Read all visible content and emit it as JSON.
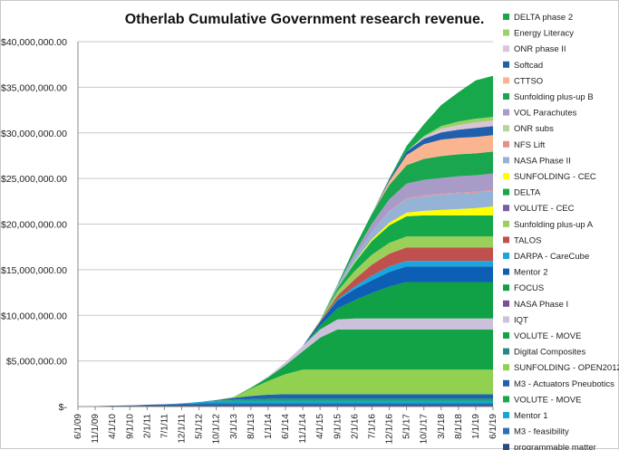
{
  "chart_data": {
    "type": "area",
    "title": "Otherlab Cumulative Government research revenue.",
    "xlabel": "",
    "ylabel": "",
    "stacked": true,
    "grid": "horizontal",
    "legend_position": "right",
    "ylim": [
      0,
      40000000
    ],
    "y_ticks": [
      0,
      5000000,
      10000000,
      15000000,
      20000000,
      25000000,
      30000000,
      35000000,
      40000000
    ],
    "y_tick_labels": [
      "$-",
      "$5,000,000.00",
      "$10,000,000.00",
      "$15,000,000.00",
      "$20,000,000.00",
      "$25,000,000.00",
      "$30,000,000.00",
      "$35,000,000.00",
      "$40,000,000.00"
    ],
    "x_tick_labels": [
      "6/1/09",
      "11/1/09",
      "4/1/10",
      "9/1/10",
      "2/1/11",
      "7/1/11",
      "12/1/11",
      "5/1/12",
      "10/1/12",
      "3/1/13",
      "8/1/13",
      "1/1/14",
      "6/1/14",
      "11/1/14",
      "4/1/15",
      "9/1/15",
      "2/1/16",
      "7/1/16",
      "12/1/16",
      "5/1/17",
      "10/1/17",
      "3/1/18",
      "8/1/18",
      "1/1/19",
      "6/1/19"
    ],
    "x": [
      "6/1/09",
      "11/1/09",
      "4/1/10",
      "9/1/10",
      "2/1/11",
      "7/1/11",
      "12/1/11",
      "5/1/12",
      "10/1/12",
      "3/1/13",
      "8/1/13",
      "1/1/14",
      "6/1/14",
      "11/1/14",
      "4/1/15",
      "9/1/15",
      "2/1/16",
      "7/1/16",
      "12/1/16",
      "5/1/17",
      "10/1/17",
      "3/1/18",
      "8/1/18",
      "1/1/19",
      "6/1/19"
    ],
    "series": [
      {
        "name": "programmable matter",
        "color": "#2e4a7a",
        "values": [
          0,
          50000,
          100000,
          120000,
          150000,
          150000,
          150000,
          150000,
          150000,
          150000,
          150000,
          150000,
          150000,
          150000,
          150000,
          150000,
          150000,
          150000,
          150000,
          150000,
          150000,
          150000,
          150000,
          150000,
          150000
        ]
      },
      {
        "name": "M3 - feasibility",
        "color": "#2f6fb5",
        "values": [
          0,
          0,
          0,
          0,
          50000,
          100000,
          150000,
          200000,
          200000,
          200000,
          200000,
          200000,
          200000,
          200000,
          200000,
          200000,
          200000,
          200000,
          200000,
          200000,
          200000,
          200000,
          200000,
          200000,
          200000
        ]
      },
      {
        "name": "Mentor 1",
        "color": "#17a6d9",
        "values": [
          0,
          0,
          0,
          0,
          0,
          0,
          50000,
          150000,
          250000,
          300000,
          300000,
          300000,
          300000,
          300000,
          300000,
          300000,
          300000,
          300000,
          300000,
          300000,
          300000,
          300000,
          300000,
          300000,
          300000
        ]
      },
      {
        "name": "VOLUTE - MOVE",
        "color": "#1aa84a",
        "values": [
          0,
          0,
          0,
          0,
          0,
          0,
          0,
          0,
          50000,
          100000,
          150000,
          200000,
          200000,
          200000,
          200000,
          200000,
          200000,
          200000,
          200000,
          200000,
          200000,
          200000,
          200000,
          200000,
          200000
        ]
      },
      {
        "name": "M3 - Actuators Pneubotics",
        "color": "#1e62b0",
        "values": [
          0,
          0,
          0,
          0,
          0,
          0,
          0,
          0,
          50000,
          200000,
          350000,
          450000,
          500000,
          500000,
          500000,
          500000,
          500000,
          500000,
          500000,
          500000,
          500000,
          500000,
          500000,
          500000,
          500000
        ]
      },
      {
        "name": "SUNFOLDING - OPEN2012",
        "color": "#92d050",
        "values": [
          0,
          0,
          0,
          0,
          0,
          0,
          0,
          0,
          0,
          100000,
          800000,
          1500000,
          2200000,
          2700000,
          2700000,
          2700000,
          2700000,
          2700000,
          2700000,
          2700000,
          2700000,
          2700000,
          2700000,
          2700000,
          2700000
        ]
      },
      {
        "name": "Digital Composites",
        "color": "#24897f",
        "values": [
          0,
          0,
          0,
          0,
          0,
          0,
          0,
          0,
          0,
          0,
          0,
          0,
          0,
          0,
          0,
          0,
          0,
          0,
          0,
          0,
          0,
          0,
          0,
          0,
          0
        ]
      },
      {
        "name": "VOLUTE - MOVE",
        "color": "#12a347",
        "values": [
          0,
          0,
          0,
          0,
          0,
          0,
          0,
          0,
          0,
          0,
          100000,
          400000,
          1000000,
          2000000,
          3500000,
          4400000,
          4400000,
          4400000,
          4400000,
          4400000,
          4400000,
          4400000,
          4400000,
          4400000,
          4400000
        ]
      },
      {
        "name": "IQT",
        "color": "#ccc0da",
        "values": [
          0,
          0,
          0,
          0,
          0,
          0,
          0,
          0,
          0,
          0,
          0,
          100000,
          300000,
          600000,
          900000,
          1100000,
          1200000,
          1200000,
          1200000,
          1200000,
          1200000,
          1200000,
          1200000,
          1200000,
          1200000
        ]
      },
      {
        "name": "NASA Phase I",
        "color": "#7b4e9e",
        "values": [
          0,
          0,
          0,
          0,
          0,
          0,
          0,
          0,
          0,
          0,
          0,
          0,
          0,
          0,
          0,
          0,
          0,
          0,
          0,
          0,
          0,
          0,
          0,
          0,
          0
        ]
      },
      {
        "name": "FOCUS",
        "color": "#10a046",
        "values": [
          0,
          0,
          0,
          0,
          0,
          0,
          0,
          0,
          0,
          0,
          0,
          0,
          0,
          0,
          400000,
          1200000,
          2000000,
          2800000,
          3500000,
          4000000,
          4000000,
          4000000,
          4000000,
          4000000,
          4000000
        ]
      },
      {
        "name": "Mentor 2",
        "color": "#0d5fb5",
        "values": [
          0,
          0,
          0,
          0,
          0,
          0,
          0,
          0,
          0,
          0,
          0,
          0,
          0,
          0,
          400000,
          900000,
          1200000,
          1400000,
          1600000,
          1700000,
          1700000,
          1700000,
          1700000,
          1700000,
          1700000
        ]
      },
      {
        "name": "DARPA - CareCube",
        "color": "#17a6df",
        "values": [
          0,
          0,
          0,
          0,
          0,
          0,
          0,
          0,
          0,
          0,
          0,
          0,
          0,
          0,
          0,
          100000,
          300000,
          500000,
          600000,
          600000,
          600000,
          600000,
          600000,
          600000,
          600000
        ]
      },
      {
        "name": "TALOS",
        "color": "#c0504d",
        "values": [
          0,
          0,
          0,
          0,
          0,
          0,
          0,
          0,
          0,
          0,
          0,
          0,
          0,
          0,
          100000,
          400000,
          800000,
          1200000,
          1400000,
          1500000,
          1500000,
          1500000,
          1500000,
          1500000,
          1500000
        ]
      },
      {
        "name": "Sunfolding plus-up A",
        "color": "#9bcf5a",
        "values": [
          0,
          0,
          0,
          0,
          0,
          0,
          0,
          0,
          0,
          0,
          0,
          0,
          0,
          0,
          100000,
          500000,
          900000,
          1100000,
          1200000,
          1200000,
          1200000,
          1200000,
          1200000,
          1200000,
          1200000
        ]
      },
      {
        "name": "VOLUTE - CEC",
        "color": "#7a5ca6",
        "values": [
          0,
          0,
          0,
          0,
          0,
          0,
          0,
          0,
          0,
          0,
          0,
          0,
          0,
          0,
          0,
          0,
          0,
          0,
          0,
          0,
          0,
          0,
          0,
          0,
          0
        ]
      },
      {
        "name": "DELTA",
        "color": "#14a84a",
        "values": [
          0,
          0,
          0,
          0,
          0,
          0,
          0,
          0,
          0,
          0,
          0,
          0,
          0,
          0,
          0,
          300000,
          900000,
          1500000,
          1900000,
          2200000,
          2300000,
          2300000,
          2300000,
          2300000,
          2300000
        ]
      },
      {
        "name": "SUNFOLDING - CEC",
        "color": "#ffff00",
        "values": [
          0,
          0,
          0,
          0,
          0,
          0,
          0,
          0,
          0,
          0,
          0,
          0,
          0,
          0,
          0,
          0,
          100000,
          200000,
          300000,
          400000,
          500000,
          600000,
          700000,
          800000,
          1000000
        ]
      },
      {
        "name": "NASA Phase II",
        "color": "#95b3d7",
        "values": [
          0,
          0,
          0,
          0,
          0,
          0,
          0,
          0,
          0,
          0,
          0,
          0,
          0,
          0,
          0,
          200000,
          500000,
          800000,
          1200000,
          1500000,
          1600000,
          1700000,
          1700000,
          1700000,
          1700000
        ]
      },
      {
        "name": "NFS Lift",
        "color": "#e6908a",
        "values": [
          0,
          0,
          0,
          0,
          0,
          0,
          0,
          0,
          0,
          0,
          0,
          0,
          0,
          0,
          0,
          0,
          0,
          0,
          50000,
          100000,
          100000,
          100000,
          100000,
          100000,
          100000
        ]
      },
      {
        "name": "ONR subs",
        "color": "#b5d69b",
        "values": [
          0,
          0,
          0,
          0,
          0,
          0,
          0,
          0,
          0,
          0,
          0,
          0,
          0,
          0,
          0,
          0,
          0,
          0,
          0,
          0,
          0,
          0,
          0,
          0,
          0
        ]
      },
      {
        "name": "VOL Parachutes",
        "color": "#a99bc7",
        "values": [
          0,
          0,
          0,
          0,
          0,
          0,
          0,
          0,
          0,
          0,
          0,
          0,
          0,
          0,
          0,
          100000,
          500000,
          900000,
          1300000,
          1600000,
          1700000,
          1700000,
          1800000,
          1800000,
          1800000
        ]
      },
      {
        "name": "Sunfolding plus-up B",
        "color": "#1aa64e",
        "values": [
          0,
          0,
          0,
          0,
          0,
          0,
          0,
          0,
          0,
          0,
          0,
          0,
          0,
          0,
          0,
          100000,
          600000,
          1100000,
          1600000,
          2000000,
          2300000,
          2400000,
          2400000,
          2400000,
          2400000
        ]
      },
      {
        "name": "CTTSO",
        "color": "#fab590",
        "values": [
          0,
          0,
          0,
          0,
          0,
          0,
          0,
          0,
          0,
          0,
          0,
          0,
          0,
          0,
          0,
          0,
          0,
          0,
          400000,
          1100000,
          1600000,
          1800000,
          1800000,
          1800000,
          1800000
        ]
      },
      {
        "name": "Softcad",
        "color": "#1f5fab",
        "values": [
          0,
          0,
          0,
          0,
          0,
          0,
          0,
          0,
          0,
          0,
          0,
          0,
          0,
          0,
          0,
          0,
          0,
          0,
          200000,
          400000,
          600000,
          800000,
          900000,
          1000000,
          1000000
        ]
      },
      {
        "name": "ONR phase II",
        "color": "#dbc4d7",
        "values": [
          0,
          0,
          0,
          0,
          0,
          0,
          0,
          0,
          0,
          0,
          0,
          0,
          0,
          0,
          0,
          0,
          0,
          0,
          0,
          0,
          200000,
          400000,
          500000,
          600000,
          600000
        ]
      },
      {
        "name": "Energy Literacy",
        "color": "#9bd166",
        "values": [
          0,
          0,
          0,
          0,
          0,
          0,
          0,
          0,
          0,
          0,
          0,
          0,
          0,
          0,
          0,
          0,
          0,
          0,
          0,
          0,
          100000,
          300000,
          400000,
          400000,
          400000
        ]
      },
      {
        "name": "DELTA phase 2",
        "color": "#17a84c",
        "values": [
          0,
          0,
          0,
          0,
          0,
          0,
          0,
          0,
          0,
          0,
          0,
          0,
          0,
          0,
          0,
          0,
          0,
          0,
          100000,
          600000,
          1300000,
          2300000,
          3200000,
          4200000,
          4500000
        ]
      }
    ]
  }
}
